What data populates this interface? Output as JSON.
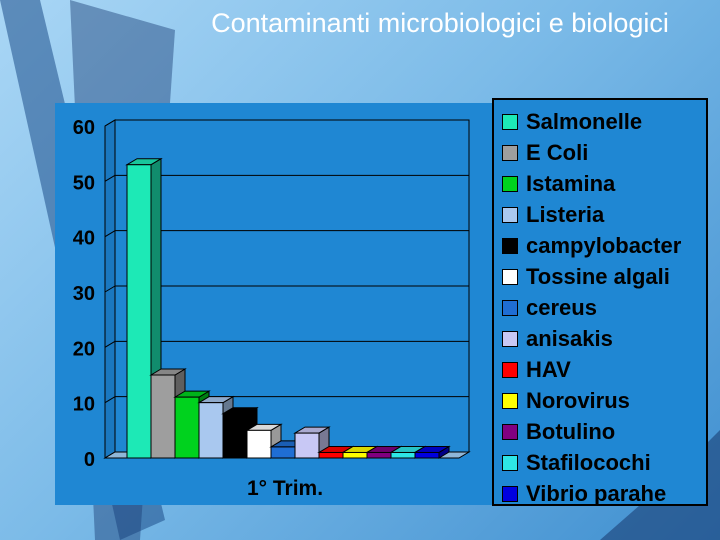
{
  "slide": {
    "title": "Contaminanti microbiologici e biologici"
  },
  "chart_data": {
    "type": "bar",
    "title": "",
    "xlabel": "",
    "ylabel": "",
    "categories": [
      "1° Trim."
    ],
    "ylim": [
      0,
      60
    ],
    "yticks": [
      0,
      10,
      20,
      30,
      40,
      50,
      60
    ],
    "grid": true,
    "legend_position": "right",
    "series": [
      {
        "name": "Salmonelle",
        "values": [
          53
        ],
        "color": "#1de9b6"
      },
      {
        "name": "E Coli",
        "values": [
          15
        ],
        "color": "#9e9e9e"
      },
      {
        "name": "Istamina",
        "values": [
          11
        ],
        "color": "#00d21e"
      },
      {
        "name": "Listeria",
        "values": [
          10
        ],
        "color": "#a9c8ef"
      },
      {
        "name": "campylobacter",
        "values": [
          8
        ],
        "color": "#000000"
      },
      {
        "name": "Tossine algali",
        "values": [
          5
        ],
        "color": "#ffffff"
      },
      {
        "name": "cereus",
        "values": [
          2
        ],
        "color": "#1f6ed4"
      },
      {
        "name": "anisakis",
        "values": [
          4.5
        ],
        "color": "#c8c8f5"
      },
      {
        "name": "HAV",
        "values": [
          1
        ],
        "color": "#ff0000"
      },
      {
        "name": "Norovirus",
        "values": [
          1
        ],
        "color": "#ffff00"
      },
      {
        "name": "Botulino",
        "values": [
          1
        ],
        "color": "#800080"
      },
      {
        "name": "Stafilocochi",
        "values": [
          1
        ],
        "color": "#2ee6e6"
      },
      {
        "name": "Vibrio parahe",
        "values": [
          1
        ],
        "color": "#0000e0"
      }
    ]
  }
}
